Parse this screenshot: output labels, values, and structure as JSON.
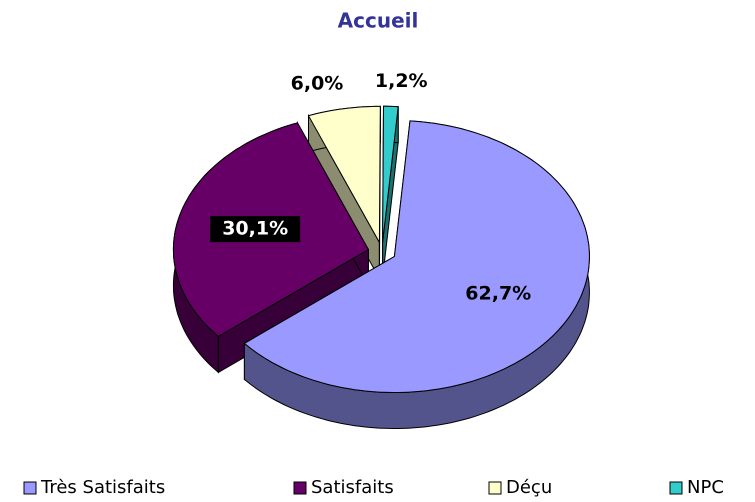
{
  "chart_data": {
    "type": "pie",
    "title": "Accueil",
    "categories": [
      "Très Satisfaits",
      "Satisfaits",
      "Déçu",
      "NPC"
    ],
    "values": [
      62.7,
      30.1,
      6.0,
      1.2
    ],
    "value_labels": [
      "62,7%",
      "30,1%",
      "6,0%",
      "1,2%"
    ],
    "colors": [
      "#9999ff",
      "#660066",
      "#ffffcc",
      "#33cccc"
    ],
    "legend": "bottom"
  }
}
